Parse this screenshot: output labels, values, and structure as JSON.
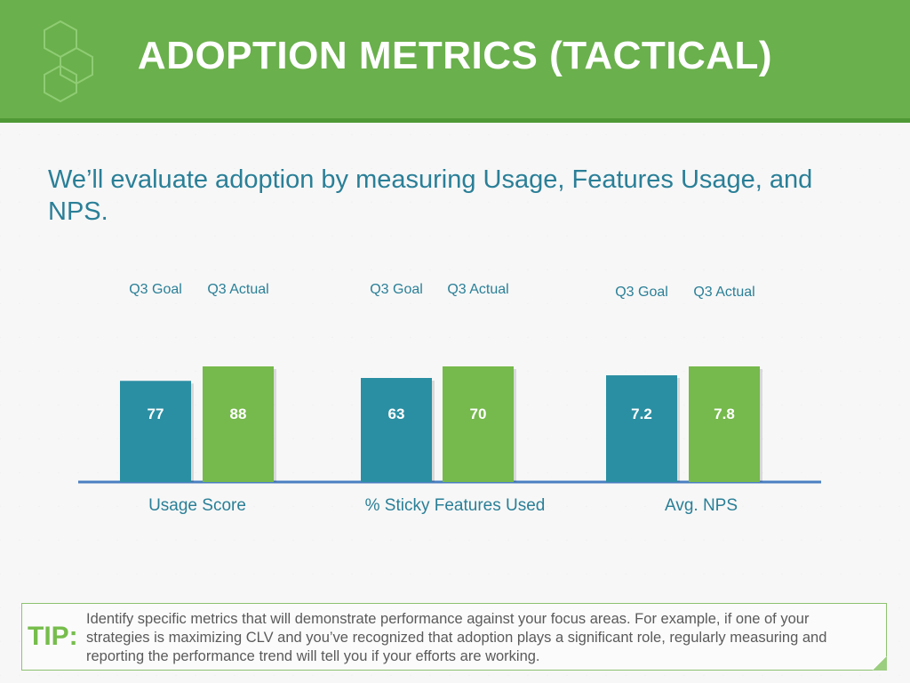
{
  "header": {
    "title": "ADOPTION METRICS (TACTICAL)",
    "background": "#6ab04c",
    "logo_icon": "hexagon-outline-logo"
  },
  "subtitle": "We’ll evaluate adoption by measuring Usage, Features Usage, and NPS.",
  "chart_data": {
    "type": "bar",
    "series_labels": [
      "Q3 Goal",
      "Q3 Actual"
    ],
    "series_colors": [
      "#2b8fa3",
      "#76b94c"
    ],
    "groups": [
      {
        "category": "Usage Score",
        "labels": [
          "77",
          "88"
        ],
        "values": [
          77,
          88
        ]
      },
      {
        "category": "% Sticky Features Used",
        "labels": [
          "63",
          "70"
        ],
        "values": [
          63,
          70
        ]
      },
      {
        "category": "Avg. NPS",
        "labels": [
          "7.2",
          "7.8"
        ],
        "values": [
          7.2,
          7.8
        ]
      }
    ]
  },
  "tip": {
    "label": "TIP:",
    "text": "Identify specific metrics that will demonstrate performance against your focus areas. For example, if one of your strategies is maximizing CLV and you’ve recognized that adoption plays a significant role, regularly measuring and reporting the performance trend will tell you if your efforts are working."
  }
}
